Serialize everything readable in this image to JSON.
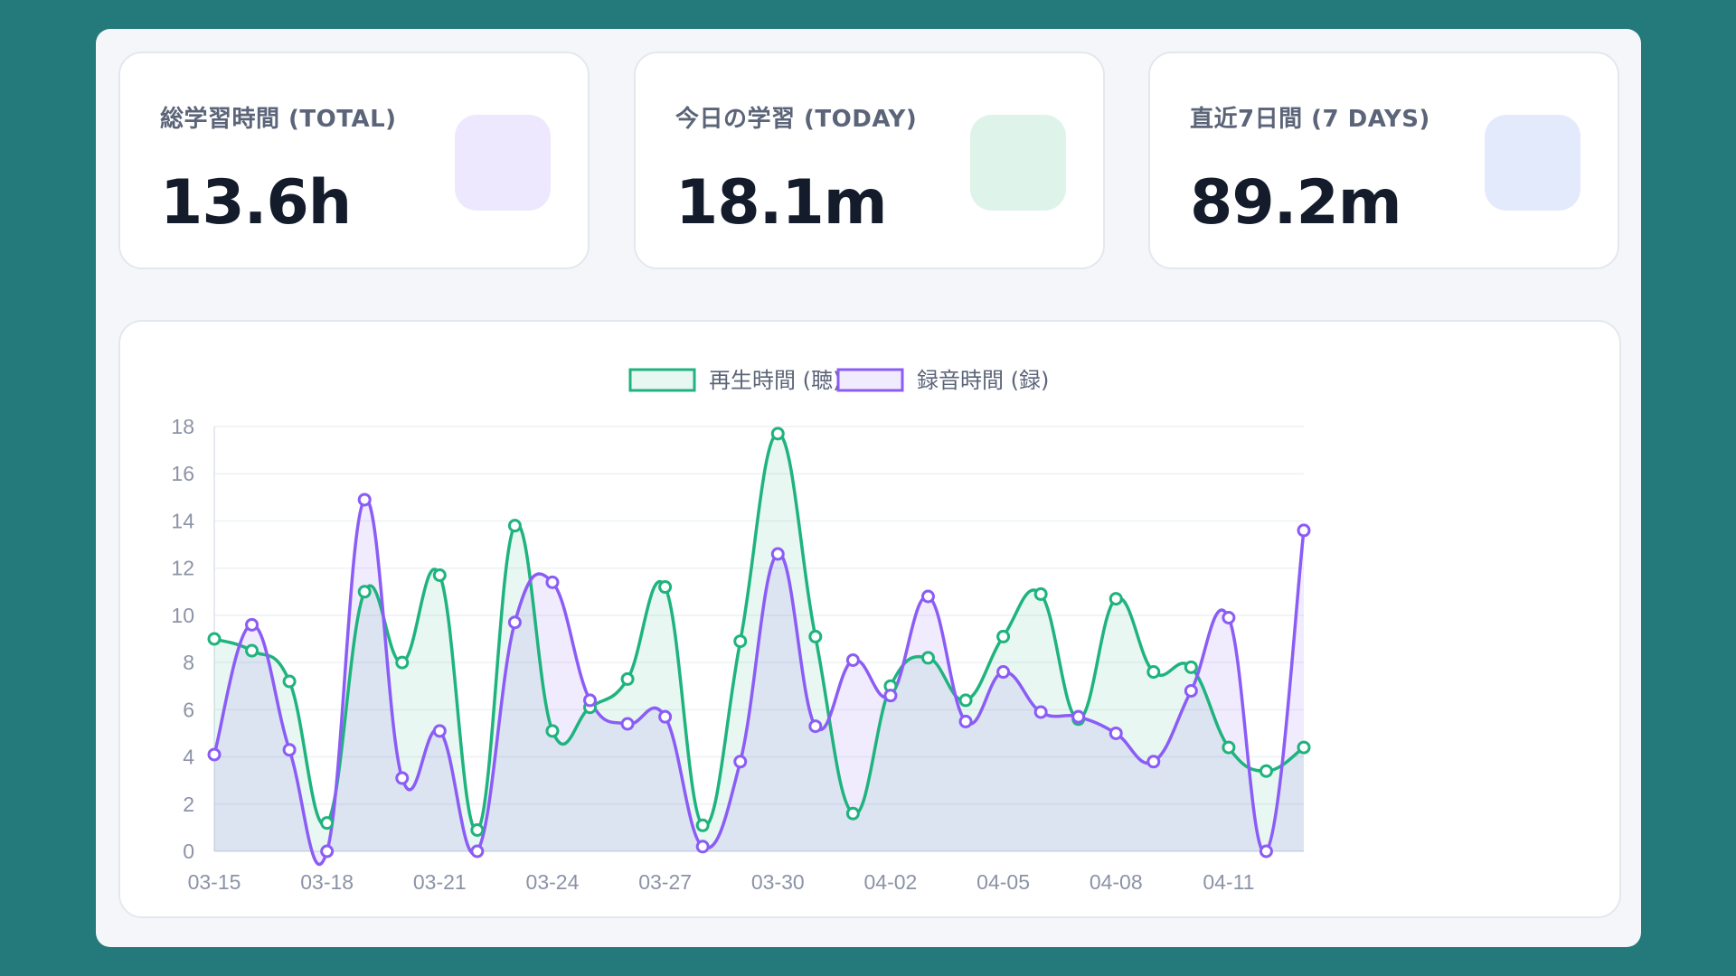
{
  "cards": [
    {
      "label": "総学習時間 (TOTAL)",
      "value": "13.6h",
      "icon_color": "#ede8fd"
    },
    {
      "label": "今日の学習 (TODAY)",
      "value": "18.1m",
      "icon_color": "#def3ea"
    },
    {
      "label": "直近7日間 (7 DAYS)",
      "value": "89.2m",
      "icon_color": "#e2eafc"
    }
  ],
  "chart_data": {
    "type": "line",
    "categories": [
      "03-15",
      "03-16",
      "03-17",
      "03-18",
      "03-19",
      "03-20",
      "03-21",
      "03-22",
      "03-23",
      "03-24",
      "03-25",
      "03-26",
      "03-27",
      "03-28",
      "03-29",
      "03-30",
      "03-31",
      "04-01",
      "04-02",
      "04-03",
      "04-04",
      "04-05",
      "04-06",
      "04-07",
      "04-08",
      "04-09",
      "04-10",
      "04-11",
      "04-12",
      "04-13"
    ],
    "x_tick_labels": [
      "03-15",
      "03-18",
      "03-21",
      "03-24",
      "03-27",
      "03-30",
      "04-02",
      "04-05",
      "04-08",
      "04-11"
    ],
    "series": [
      {
        "name": "再生時間 (聴)",
        "color": "#1fb37e",
        "fill": "rgba(31,179,126,0.10)",
        "values": [
          9.0,
          8.5,
          7.2,
          1.2,
          11.0,
          8.0,
          11.7,
          0.9,
          13.8,
          5.1,
          6.1,
          7.3,
          11.2,
          1.1,
          8.9,
          17.7,
          9.1,
          1.6,
          7.0,
          8.2,
          6.4,
          9.1,
          10.9,
          5.6,
          10.7,
          7.6,
          7.8,
          4.4,
          3.4,
          4.4
        ]
      },
      {
        "name": "録音時間 (録)",
        "color": "#8b5cf6",
        "fill": "rgba(139,92,246,0.12)",
        "values": [
          4.1,
          9.6,
          4.3,
          0.0,
          14.9,
          3.1,
          5.1,
          0.0,
          9.7,
          11.4,
          6.4,
          5.4,
          5.7,
          0.2,
          3.8,
          12.6,
          5.3,
          8.1,
          6.6,
          10.8,
          5.5,
          7.6,
          5.9,
          5.7,
          5.0,
          3.8,
          6.8,
          9.9,
          0.0,
          13.6
        ]
      }
    ],
    "ylim": [
      0,
      18
    ],
    "y_ticks": [
      "0",
      "2",
      "4",
      "6",
      "8",
      "10",
      "12",
      "14",
      "16",
      "18"
    ],
    "legend_position": "top-center",
    "grid": true,
    "title": "",
    "xlabel": "",
    "ylabel": ""
  }
}
